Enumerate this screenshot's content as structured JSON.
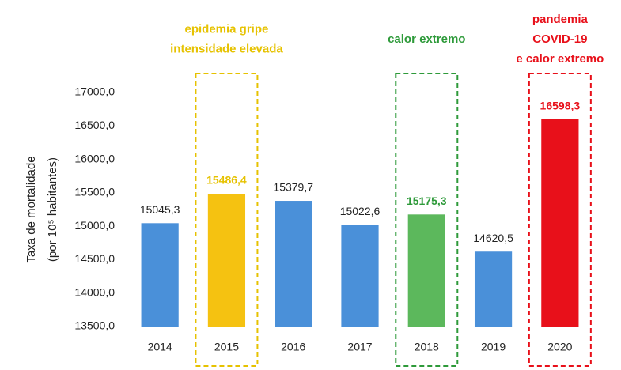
{
  "chart_data": {
    "type": "bar",
    "y_label": [
      "Taxa de mortalidade",
      "(por 10⁵ habitantes)"
    ],
    "categories": [
      "2014",
      "2015",
      "2016",
      "2017",
      "2018",
      "2019",
      "2020"
    ],
    "values": [
      15045.3,
      15486.4,
      15379.7,
      15022.6,
      15175.3,
      14620.5,
      16598.3
    ],
    "value_labels": [
      "15045,3",
      "15486,4",
      "15379,7",
      "15022,6",
      "15175,3",
      "14620,5",
      "16598,3"
    ],
    "colors": [
      "#4a90d9",
      "#f5c211",
      "#4a90d9",
      "#4a90d9",
      "#5cb85c",
      "#4a90d9",
      "#e8101a"
    ],
    "ylim": [
      13500,
      17000
    ],
    "yticks": [
      {
        "value": 13500,
        "label": "13500,0"
      },
      {
        "value": 14000,
        "label": "14000,0"
      },
      {
        "value": 14500,
        "label": "14500,0"
      },
      {
        "value": 15000,
        "label": "15000,0"
      },
      {
        "value": 15500,
        "label": "15500,0"
      },
      {
        "value": 16000,
        "label": "16000,0"
      },
      {
        "value": 16500,
        "label": "16500,0"
      },
      {
        "value": 17000,
        "label": "17000,0"
      }
    ],
    "grid": false,
    "annotations": [
      {
        "category": "2015",
        "lines": [
          "epidemia gripe",
          "intensidade elevada"
        ],
        "color": "#e6c200"
      },
      {
        "category": "2018",
        "lines": [
          "calor extremo"
        ],
        "color": "#2e9a3a"
      },
      {
        "category": "2020",
        "lines": [
          "pandemia",
          "COVID-19",
          "e calor extremo"
        ],
        "color": "#e8101a"
      }
    ]
  }
}
